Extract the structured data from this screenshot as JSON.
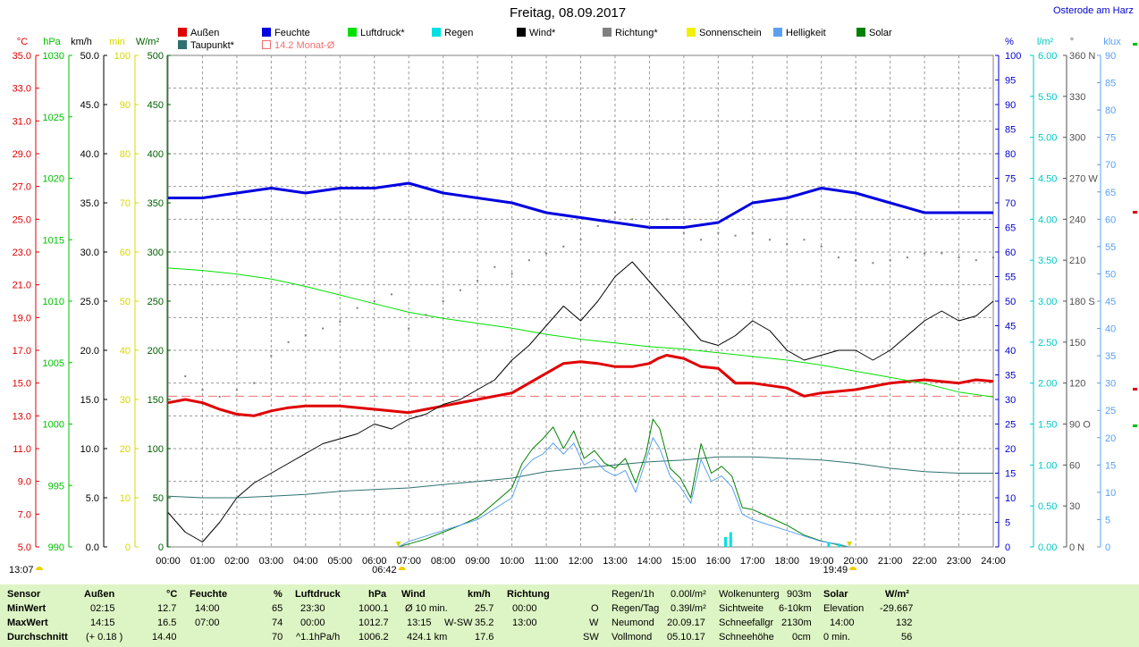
{
  "header": {
    "title": "Freitag, 08.09.2017",
    "location": "Osterode am Harz"
  },
  "legend": [
    {
      "label": "Außen",
      "color": "#e00000"
    },
    {
      "label": "Feuchte",
      "color": "#0000e0"
    },
    {
      "label": "Luftdruck*",
      "color": "#00e000"
    },
    {
      "label": "Regen",
      "color": "#00e0e0"
    },
    {
      "label": "Wind*",
      "color": "#000000"
    },
    {
      "label": "Richtung*",
      "color": "#808080"
    },
    {
      "label": "Sonnenschein",
      "color": "#f0f000"
    },
    {
      "label": "Helligkeit",
      "color": "#5aa0f0"
    },
    {
      "label": "Solar",
      "color": "#008000"
    },
    {
      "label": "Taupunkt*",
      "color": "#2f7070"
    },
    {
      "label": "14.2 Monat-Ø",
      "color": "#f07070"
    }
  ],
  "axes": {
    "left_units": [
      "°C",
      "hPa",
      "km/h",
      "min",
      "W/m²"
    ],
    "right_units": [
      "%",
      "l/m²",
      "°",
      "klux"
    ],
    "temp_ticks": [
      "35.0",
      "33.0",
      "31.0",
      "29.0",
      "27.0",
      "25.0",
      "23.0",
      "21.0",
      "19.0",
      "17.0",
      "15.0",
      "13.0",
      "11.0",
      "9.0",
      "7.0",
      "5.0"
    ],
    "hpa_ticks": [
      "1030",
      "1025",
      "1020",
      "1015",
      "1010",
      "1005",
      "1000",
      "995",
      "990"
    ],
    "kmh_ticks": [
      "50.0",
      "45.0",
      "40.0",
      "35.0",
      "30.0",
      "25.0",
      "20.0",
      "15.0",
      "10.0",
      "5.0",
      "0.0"
    ],
    "min_ticks": [
      "100",
      "90",
      "80",
      "70",
      "60",
      "50",
      "40",
      "30",
      "20",
      "10",
      "0"
    ],
    "wm2_ticks": [
      "500",
      "450",
      "400",
      "350",
      "300",
      "250",
      "200",
      "150",
      "100",
      "50",
      "0"
    ],
    "pct_ticks": [
      "100",
      "95",
      "90",
      "85",
      "80",
      "75",
      "70",
      "65",
      "60",
      "55",
      "50",
      "45",
      "40",
      "35",
      "30",
      "25",
      "20",
      "15",
      "10",
      "5",
      "0"
    ],
    "rain_ticks": [
      "6.00",
      "5.50",
      "5.00",
      "4.50",
      "4.00",
      "3.50",
      "3.00",
      "2.50",
      "2.00",
      "1.50",
      "1.00",
      "0.50",
      "0.00"
    ],
    "dir_ticks": [
      "360 N",
      "330",
      "300",
      "270 W",
      "240",
      "210",
      "180 S",
      "150",
      "120",
      "90 O",
      "60",
      "30",
      "0 N"
    ],
    "klux_ticks": [
      "90",
      "85",
      "80",
      "75",
      "70",
      "65",
      "60",
      "55",
      "50",
      "45",
      "40",
      "35",
      "30",
      "25",
      "20",
      "15",
      "10",
      "5",
      "0"
    ],
    "x_ticks": [
      "00:00",
      "01:00",
      "02:00",
      "03:00",
      "04:00",
      "05:00",
      "06:00",
      "07:00",
      "08:00",
      "09:00",
      "10:00",
      "11:00",
      "12:00",
      "13:00",
      "14:00",
      "15:00",
      "16:00",
      "17:00",
      "18:00",
      "19:00",
      "20:00",
      "21:00",
      "22:00",
      "23:00",
      "24:00"
    ],
    "markers": {
      "moon": "13:07",
      "sunrise": "06:42",
      "sunset": "19:49"
    }
  },
  "chart_data": {
    "type": "line",
    "x_unit": "hour",
    "xlim": [
      0,
      24
    ],
    "monthly_avg_temp": 14.2,
    "series": [
      {
        "name": "Außen",
        "unit": "°C",
        "range": [
          5,
          35
        ],
        "color": "#e00000",
        "x": [
          0,
          0.5,
          1,
          1.5,
          2,
          2.5,
          3,
          3.5,
          4,
          5,
          6,
          7,
          7.5,
          8,
          9,
          10,
          10.5,
          11,
          11.5,
          12,
          12.5,
          13,
          13.5,
          14,
          14.25,
          14.5,
          15,
          15.5,
          16,
          16.5,
          17,
          18,
          18.5,
          19,
          20,
          21,
          22,
          23,
          23.5,
          24
        ],
        "y": [
          13.8,
          14.0,
          13.8,
          13.4,
          13.1,
          13.0,
          13.3,
          13.5,
          13.6,
          13.6,
          13.4,
          13.2,
          13.4,
          13.6,
          14.0,
          14.4,
          15.0,
          15.6,
          16.2,
          16.3,
          16.2,
          16.0,
          16.0,
          16.2,
          16.5,
          16.7,
          16.5,
          16.0,
          15.9,
          15.0,
          15.0,
          14.7,
          14.2,
          14.4,
          14.6,
          15.0,
          15.2,
          15.0,
          15.2,
          15.1
        ]
      },
      {
        "name": "Feuchte",
        "unit": "%",
        "range": [
          0,
          100
        ],
        "color": "#0000e0",
        "x": [
          0,
          1,
          2,
          3,
          4,
          5,
          6,
          7,
          8,
          9,
          10,
          11,
          12,
          13,
          14,
          15,
          16,
          17,
          18,
          19,
          20,
          21,
          22,
          23,
          24
        ],
        "y": [
          71,
          71,
          72,
          73,
          72,
          73,
          73,
          74,
          72,
          71,
          70,
          68,
          67,
          66,
          65,
          65,
          66,
          70,
          71,
          73,
          72,
          70,
          68,
          68,
          68
        ]
      },
      {
        "name": "Luftdruck*",
        "unit": "hPa",
        "range": [
          990,
          1030
        ],
        "color": "#00e000",
        "x": [
          0,
          1,
          2,
          3,
          4,
          5,
          6,
          7,
          8,
          9,
          10,
          11,
          12,
          13,
          14,
          15,
          16,
          17,
          18,
          19,
          20,
          21,
          22,
          23,
          24
        ],
        "y": [
          1012.7,
          1012.5,
          1012.2,
          1011.8,
          1011.2,
          1010.5,
          1009.8,
          1009.1,
          1008.6,
          1008.2,
          1007.8,
          1007.3,
          1006.9,
          1006.6,
          1006.3,
          1006.1,
          1005.8,
          1005.5,
          1005.2,
          1004.8,
          1004.3,
          1003.8,
          1003.3,
          1002.6,
          1002.2
        ]
      },
      {
        "name": "Wind*",
        "unit": "km/h",
        "range": [
          0,
          50
        ],
        "color": "#000000",
        "x": [
          0,
          0.5,
          1,
          1.5,
          2,
          2.5,
          3,
          3.5,
          4,
          4.5,
          5,
          5.5,
          6,
          6.5,
          7,
          7.5,
          8,
          8.5,
          9,
          9.5,
          10,
          10.5,
          11,
          11.5,
          12,
          12.5,
          13,
          13.5,
          14,
          14.5,
          15,
          15.5,
          16,
          16.5,
          17,
          17.5,
          18,
          18.5,
          19,
          19.5,
          20,
          20.5,
          21,
          21.5,
          22,
          22.5,
          23,
          23.5,
          24
        ],
        "y": [
          3.5,
          1.5,
          0.5,
          2.5,
          5,
          6.5,
          7.5,
          8.5,
          9.5,
          10.5,
          11,
          11.5,
          12.5,
          12,
          13,
          13.5,
          14.5,
          15,
          16,
          17,
          19,
          20.5,
          22.5,
          24.5,
          23,
          25,
          27.5,
          29,
          27,
          25,
          23,
          21,
          20.5,
          21.5,
          23,
          22,
          20,
          19,
          19.5,
          20,
          20,
          19,
          20,
          21.5,
          23,
          24,
          23,
          23.5,
          25
        ]
      },
      {
        "name": "Taupunkt*",
        "unit": "°C",
        "range": [
          5,
          35
        ],
        "color": "#2f7070",
        "x": [
          0,
          1,
          2,
          3,
          4,
          5,
          6,
          7,
          8,
          9,
          10,
          11,
          12,
          13,
          14,
          15,
          16,
          17,
          18,
          19,
          20,
          21,
          22,
          23,
          24
        ],
        "y": [
          8.1,
          8.0,
          8.0,
          8.1,
          8.2,
          8.4,
          8.5,
          8.6,
          8.8,
          9.0,
          9.2,
          9.6,
          9.8,
          10.0,
          10.2,
          10.3,
          10.5,
          10.5,
          10.4,
          10.3,
          10.1,
          9.8,
          9.6,
          9.5,
          9.5
        ]
      },
      {
        "name": "Solar",
        "unit": "W/m²",
        "range": [
          0,
          500
        ],
        "color": "#008000",
        "x": [
          6.7,
          7,
          7.5,
          8,
          8.5,
          9,
          9.5,
          10,
          10.3,
          10.6,
          10.9,
          11.2,
          11.5,
          11.8,
          12.1,
          12.4,
          12.7,
          13,
          13.3,
          13.6,
          13.9,
          14.1,
          14.3,
          14.6,
          14.9,
          15.2,
          15.5,
          15.8,
          16.1,
          16.4,
          16.7,
          17,
          17.5,
          18,
          18.5,
          19,
          19.5,
          19.8
        ],
        "y": [
          0,
          3,
          8,
          15,
          22,
          30,
          45,
          60,
          85,
          100,
          110,
          122,
          100,
          118,
          90,
          98,
          85,
          80,
          90,
          65,
          95,
          130,
          120,
          80,
          70,
          50,
          105,
          75,
          82,
          72,
          40,
          38,
          30,
          22,
          12,
          6,
          2,
          0
        ]
      },
      {
        "name": "Helligkeit",
        "unit": "klux",
        "range": [
          0,
          90
        ],
        "color": "#5aa0f0",
        "x": [
          6.7,
          7,
          7.5,
          8,
          8.5,
          9,
          9.5,
          10,
          10.3,
          10.6,
          10.9,
          11.2,
          11.5,
          11.8,
          12.1,
          12.4,
          12.7,
          13,
          13.3,
          13.6,
          13.9,
          14.1,
          14.3,
          14.6,
          14.9,
          15.2,
          15.5,
          15.8,
          16.1,
          16.4,
          16.7,
          17,
          17.5,
          18,
          18.5,
          19,
          19.5,
          19.8
        ],
        "y": [
          0,
          1,
          2,
          3,
          4,
          5,
          7,
          9,
          14,
          16,
          17,
          19,
          17,
          19,
          15,
          16,
          14,
          13,
          14,
          10,
          16,
          20,
          18,
          13,
          11,
          8,
          16,
          12,
          13,
          11,
          6,
          5,
          4,
          3,
          2,
          1,
          0.5,
          0
        ]
      },
      {
        "name": "Richtung*",
        "unit": "°",
        "range": [
          0,
          360
        ],
        "color": "#808080",
        "x": [
          0.5,
          1,
          1.5,
          2,
          2.5,
          3,
          3.5,
          4,
          4.5,
          5,
          5.5,
          6,
          6.5,
          7,
          7.5,
          8,
          8.5,
          9,
          9.5,
          10,
          10.5,
          11,
          11.5,
          12,
          12.5,
          13,
          13.5,
          14,
          14.5,
          15,
          15.5,
          16,
          16.5,
          17,
          17.5,
          18,
          18.5,
          19,
          19.5,
          20,
          20.5,
          21,
          21.5,
          22,
          22.5,
          23,
          23.5,
          24
        ],
        "y": [
          125,
          115,
          110,
          115,
          120,
          140,
          150,
          155,
          160,
          165,
          175,
          180,
          185,
          160,
          170,
          180,
          188,
          195,
          205,
          200,
          210,
          215,
          220,
          225,
          235,
          245,
          240,
          235,
          240,
          230,
          225,
          230,
          228,
          230,
          225,
          222,
          225,
          220,
          212,
          210,
          208,
          210,
          212,
          215,
          215,
          212,
          210,
          212
        ]
      },
      {
        "name": "Regen",
        "unit": "l/m²",
        "range": [
          0,
          6
        ],
        "color": "#00e0e0",
        "x": [
          16.2,
          16.35,
          19.2,
          19.5
        ],
        "y": [
          0.12,
          0.18,
          0.06,
          0.04
        ]
      }
    ]
  },
  "footer": {
    "sensor": {
      "label": "Sensor",
      "rows": [
        "MinWert",
        "MaxWert",
        "Durchschnitt"
      ]
    },
    "aussen": {
      "title": "Außen",
      "unit": "°C",
      "min_time": "02:15",
      "min_val": "12.7",
      "max_time": "14:15",
      "max_val": "16.5",
      "avg_extra": "(+ 0.18 )",
      "avg_val": "14.40"
    },
    "feuchte": {
      "title": "Feuchte",
      "unit": "%",
      "min_time": "14:00",
      "min_val": "65",
      "max_time": "07:00",
      "max_val": "74",
      "avg_val": "70"
    },
    "luftdruck": {
      "title": "Luftdruck",
      "unit": "hPa",
      "min_time": "23:30",
      "min_val": "1000.1",
      "max_time": "00:00",
      "max_val": "1012.7",
      "avg_extra": "^1.1hPa/h",
      "avg_val": "1006.2"
    },
    "wind": {
      "title": "Wind",
      "unit": "km/h",
      "min_time": "Ø 10 min.",
      "min_val": "25.7",
      "max_time": "13:15",
      "max_dir": "W-SW",
      "max_val": "35.2",
      "avg_extra": "424.1 km",
      "avg_val": "17.6"
    },
    "richtung": {
      "title": "Richtung",
      "min_time": "00:00",
      "min_val": "O",
      "max_time": "13:00",
      "max_val": "W",
      "avg_val": "SW"
    },
    "regen": {
      "r1_label": "Regen/1h",
      "r1_val": "0.00l/m²",
      "r2_label": "Regen/Tag",
      "r2_val": "0.39l/m²",
      "r3_label": "Neumond",
      "r3_val": "20.09.17",
      "r4_label": "Vollmond",
      "r4_val": "05.10.17"
    },
    "wolken": {
      "r1_label": "Wolkenunterg",
      "r1_val": "903m",
      "r2_label": "Sichtweite",
      "r2_val": "6-10km",
      "r3_label": "Schneefallgr",
      "r3_val": "2130m",
      "r4_label": "Schneehöhe",
      "r4_val": "0cm"
    },
    "solar": {
      "title": "Solar",
      "unit": "W/m²",
      "r2_label": "Elevation",
      "r2_val": "-29.667",
      "r3_label": "14:00",
      "r3_val": "132",
      "r4_label": "0 min.",
      "r4_val": "56"
    }
  }
}
